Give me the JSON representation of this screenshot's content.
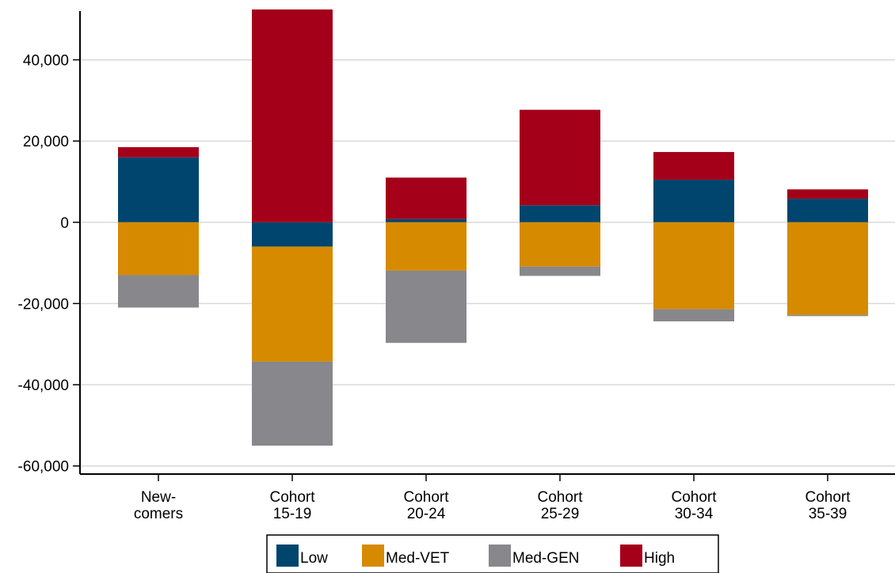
{
  "chart_data": {
    "type": "bar",
    "stacked": true,
    "title": "",
    "xlabel": "",
    "ylabel": "",
    "categories": [
      [
        "New-",
        "comers"
      ],
      [
        "Cohort",
        "15-19"
      ],
      [
        "Cohort",
        "20-24"
      ],
      [
        "Cohort",
        "25-29"
      ],
      [
        "Cohort",
        "30-34"
      ],
      [
        "Cohort",
        "35-39"
      ]
    ],
    "series": [
      {
        "name": "Low",
        "color": "#00456e",
        "values": [
          16000,
          -6000,
          800,
          4200,
          10500,
          5800
        ]
      },
      {
        "name": "Med-VET",
        "color": "#d68a00",
        "values": [
          -13000,
          -28300,
          -11900,
          -10900,
          -21400,
          -22800
        ]
      },
      {
        "name": "Med-GEN",
        "color": "#88878b",
        "values": [
          -8000,
          -20700,
          -17800,
          -2300,
          -3000,
          -300
        ]
      },
      {
        "name": "High",
        "color": "#a50019",
        "values": [
          2500,
          52400,
          10200,
          23500,
          6800,
          2300
        ]
      }
    ],
    "ylim": [
      -62000,
      52000
    ],
    "yticks": [
      40000,
      20000,
      0,
      -20000,
      -40000,
      -60000
    ],
    "ytick_labels": [
      "40,000",
      "20,000",
      "0",
      "-20,000",
      "-40,000",
      "-60,000"
    ],
    "grid": true,
    "legend_position": "bottom"
  }
}
